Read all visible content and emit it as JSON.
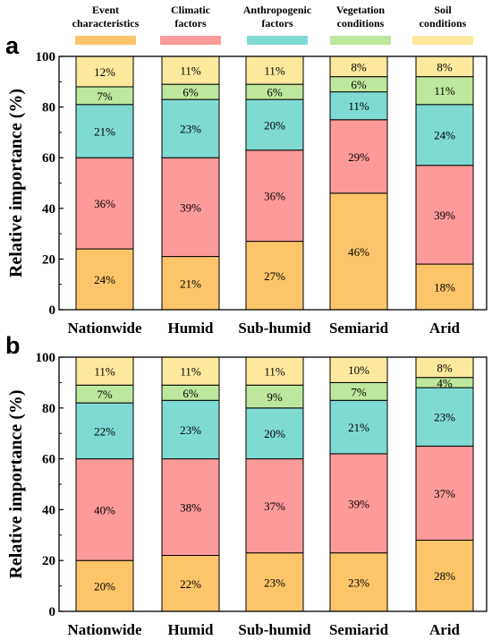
{
  "legend": [
    {
      "line1": "Event",
      "line2": "characteristics",
      "color": "#FDC56A"
    },
    {
      "line1": "Climatic",
      "line2": "factors",
      "color": "#FD9A9A"
    },
    {
      "line1": "Anthropogenic",
      "line2": "factors",
      "color": "#7FDAD2"
    },
    {
      "line1": "Vegetation",
      "line2": "conditions",
      "color": "#BDE79C"
    },
    {
      "line1": "Soil",
      "line2": "conditions",
      "color": "#FDE99E"
    }
  ],
  "chart_data": [
    {
      "type": "bar",
      "stacked": true,
      "panel": "a",
      "categories": [
        "Nationwide",
        "Humid",
        "Sub-humid",
        "Semiarid",
        "Arid"
      ],
      "ylabel": "Relative importance (%)",
      "ylim": [
        0,
        100
      ],
      "yticks": [
        0,
        20,
        40,
        60,
        80,
        100
      ],
      "series": [
        {
          "name": "Event characteristics",
          "values": [
            24,
            21,
            27,
            46,
            18
          ],
          "labels": [
            "24%",
            "21%",
            "27%",
            "46%",
            "18%"
          ]
        },
        {
          "name": "Climatic factors",
          "values": [
            36,
            39,
            36,
            29,
            39
          ],
          "labels": [
            "36%",
            "39%",
            "36%",
            "29%",
            "39%"
          ]
        },
        {
          "name": "Anthropogenic factors",
          "values": [
            21,
            23,
            20,
            11,
            24
          ],
          "labels": [
            "21%",
            "23%",
            "20%",
            "11%",
            "24%"
          ]
        },
        {
          "name": "Vegetation conditions",
          "values": [
            7,
            6,
            6,
            6,
            11
          ],
          "labels": [
            "7%",
            "6%",
            "6%",
            "6%",
            "11%"
          ]
        },
        {
          "name": "Soil conditions",
          "values": [
            12,
            11,
            11,
            8,
            8
          ],
          "labels": [
            "12%",
            "11%",
            "11%",
            "8%",
            "8%"
          ]
        }
      ]
    },
    {
      "type": "bar",
      "stacked": true,
      "panel": "b",
      "categories": [
        "Nationwide",
        "Humid",
        "Sub-humid",
        "Semiarid",
        "Arid"
      ],
      "ylabel": "Relative importance (%)",
      "ylim": [
        0,
        100
      ],
      "yticks": [
        0,
        20,
        40,
        60,
        80,
        100
      ],
      "series": [
        {
          "name": "Event characteristics",
          "values": [
            20,
            22,
            23,
            23,
            28
          ],
          "labels": [
            "20%",
            "22%",
            "23%",
            "23%",
            "28%"
          ]
        },
        {
          "name": "Climatic factors",
          "values": [
            40,
            38,
            37,
            39,
            37
          ],
          "labels": [
            "40%",
            "38%",
            "37%",
            "39%",
            "37%"
          ]
        },
        {
          "name": "Anthropogenic factors",
          "values": [
            22,
            23,
            20,
            21,
            23
          ],
          "labels": [
            "22%",
            "23%",
            "20%",
            "21%",
            "23%"
          ]
        },
        {
          "name": "Vegetation conditions",
          "values": [
            7,
            6,
            9,
            7,
            4
          ],
          "labels": [
            "7%",
            "6%",
            "9%",
            "7%",
            "4%"
          ]
        },
        {
          "name": "Soil conditions",
          "values": [
            11,
            11,
            11,
            10,
            8
          ],
          "labels": [
            "11%",
            "11%",
            "11%",
            "10%",
            "8%"
          ]
        }
      ]
    }
  ]
}
